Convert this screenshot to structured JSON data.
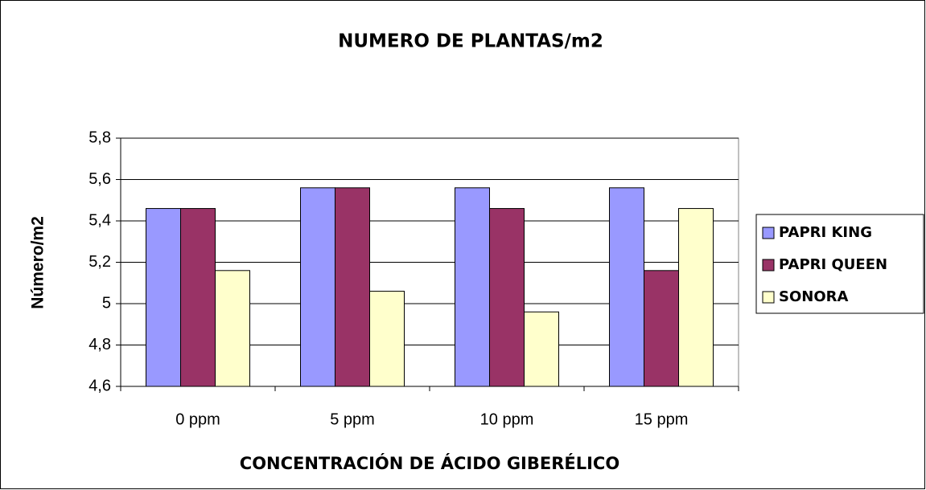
{
  "chart_data": {
    "type": "bar",
    "title": "NUMERO DE PLANTAS/m2",
    "x_label": "CONCENTRACIÓN DE ÁCIDO GIBERÉLICO",
    "y_label": "Número/m2",
    "categories": [
      "0 ppm",
      "5 ppm",
      "10 ppm",
      "15 ppm"
    ],
    "series": [
      {
        "name": "PAPRI KING",
        "color": "#9999ff",
        "values": [
          5.46,
          5.56,
          5.56,
          5.56
        ]
      },
      {
        "name": "PAPRI QUEEN",
        "color": "#993366",
        "values": [
          5.46,
          5.56,
          5.46,
          5.16
        ]
      },
      {
        "name": "SONORA",
        "color": "#ffffcc",
        "values": [
          5.16,
          5.06,
          4.96,
          5.46
        ]
      }
    ],
    "ylim": [
      4.6,
      5.8
    ],
    "yticks": [
      {
        "value": 4.6,
        "label": "4,6"
      },
      {
        "value": 4.8,
        "label": "4,8"
      },
      5,
      {
        "value": 5.2,
        "label": "5,2"
      },
      {
        "value": 5.4,
        "label": "5,4"
      },
      {
        "value": 5.6,
        "label": "5,6"
      },
      {
        "value": 5.8,
        "label": "5,8"
      }
    ],
    "grid": true,
    "legend": "right"
  }
}
